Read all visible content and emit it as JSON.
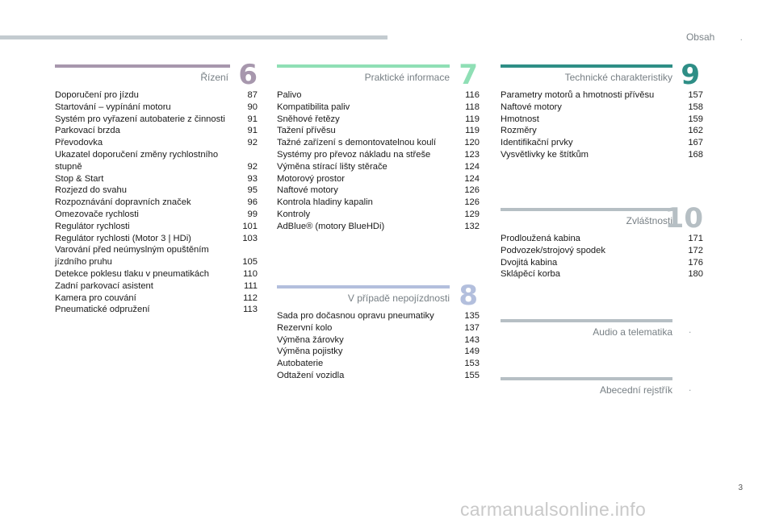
{
  "header": {
    "title": "Obsah",
    "dot": "."
  },
  "colors": {
    "purple": "#a797ad",
    "green": "#8fdfb5",
    "teal": "#2e8e86",
    "blue": "#b3bfdd",
    "gray": "#b6bfc4"
  },
  "sections": {
    "s6": {
      "title": "Řízení",
      "number": "6",
      "entries": [
        {
          "text": "Doporučení pro jízdu",
          "page": "87"
        },
        {
          "text": "Startování – vypínání motoru",
          "page": "90"
        },
        {
          "text": "Systém pro vyřazení autobaterie z činnosti",
          "page": "91"
        },
        {
          "text": "Parkovací brzda",
          "page": "91"
        },
        {
          "text": "Převodovka",
          "page": "92"
        },
        {
          "text": "Ukazatel doporučení změny rychlostního\nstupně",
          "page": "92"
        },
        {
          "text": "Stop & Start",
          "page": "93"
        },
        {
          "text": "Rozjezd do svahu",
          "page": "95"
        },
        {
          "text": "Rozpoznávání dopravních značek",
          "page": "96"
        },
        {
          "text": "Omezovače rychlosti",
          "page": "99"
        },
        {
          "text": "Regulátor rychlosti",
          "page": "101"
        },
        {
          "text": "Regulátor rychlosti (Motor 3 | HDi)",
          "page": "103"
        },
        {
          "text": "Varování před neúmyslným opuštěním\njízdního pruhu",
          "page": "105"
        },
        {
          "text": "Detekce poklesu tlaku v pneumatikách",
          "page": "110"
        },
        {
          "text": "Zadní parkovací asistent",
          "page": "111"
        },
        {
          "text": "Kamera pro couvání",
          "page": "112"
        },
        {
          "text": "Pneumatické odpružení",
          "page": "113"
        }
      ]
    },
    "s7": {
      "title": "Praktické informace",
      "number": "7",
      "entries": [
        {
          "text": "Palivo",
          "page": "116"
        },
        {
          "text": "Kompatibilita paliv",
          "page": "118"
        },
        {
          "text": "Sněhové řetězy",
          "page": "119"
        },
        {
          "text": "Tažení přívěsu",
          "page": "119"
        },
        {
          "text": "Tažné zařízení s demontovatelnou koulí",
          "page": "120"
        },
        {
          "text": "Systémy pro převoz nákladu na střeše",
          "page": "123"
        },
        {
          "text": "Výměna stírací lišty stěrače",
          "page": "124"
        },
        {
          "text": "Motorový prostor",
          "page": "124"
        },
        {
          "text": "Naftové motory",
          "page": "126"
        },
        {
          "text": "Kontrola hladiny kapalin",
          "page": "126"
        },
        {
          "text": "Kontroly",
          "page": "129"
        },
        {
          "text": "AdBlue® (motory BlueHDi)",
          "page": "132"
        }
      ]
    },
    "s8": {
      "title": "V případě nepojízdnosti",
      "number": "8",
      "entries": [
        {
          "text": "Sada pro dočasnou opravu pneumatiky",
          "page": "135"
        },
        {
          "text": "Rezervní kolo",
          "page": "137"
        },
        {
          "text": "Výměna žárovky",
          "page": "143"
        },
        {
          "text": "Výměna pojistky",
          "page": "149"
        },
        {
          "text": "Autobaterie",
          "page": "153"
        },
        {
          "text": "Odtažení vozidla",
          "page": "155"
        }
      ]
    },
    "s9": {
      "title": "Technické charakteristiky",
      "number": "9",
      "entries": [
        {
          "text": "Parametry motorů a hmotnosti přívěsu",
          "page": "157"
        },
        {
          "text": "Naftové motory",
          "page": "158"
        },
        {
          "text": "Hmotnost",
          "page": "159"
        },
        {
          "text": "Rozměry",
          "page": "162"
        },
        {
          "text": "Identifikační prvky",
          "page": "167"
        },
        {
          "text": "Vysvětlivky ke štítkům",
          "page": "168"
        }
      ]
    },
    "s10": {
      "title": "Zvláštnosti",
      "number": "10",
      "entries": [
        {
          "text": "Prodloužená kabina",
          "page": "171"
        },
        {
          "text": "Podvozek/strojový spodek",
          "page": "172"
        },
        {
          "text": "Dvojitá kabina",
          "page": "176"
        },
        {
          "text": "Sklápěcí korba",
          "page": "180"
        }
      ]
    },
    "audio": {
      "title": "Audio a telematika",
      "mark": "."
    },
    "index": {
      "title": "Abecední rejstřík",
      "mark": "."
    }
  },
  "page_number": "3",
  "watermark": "carmanualsonline.info"
}
